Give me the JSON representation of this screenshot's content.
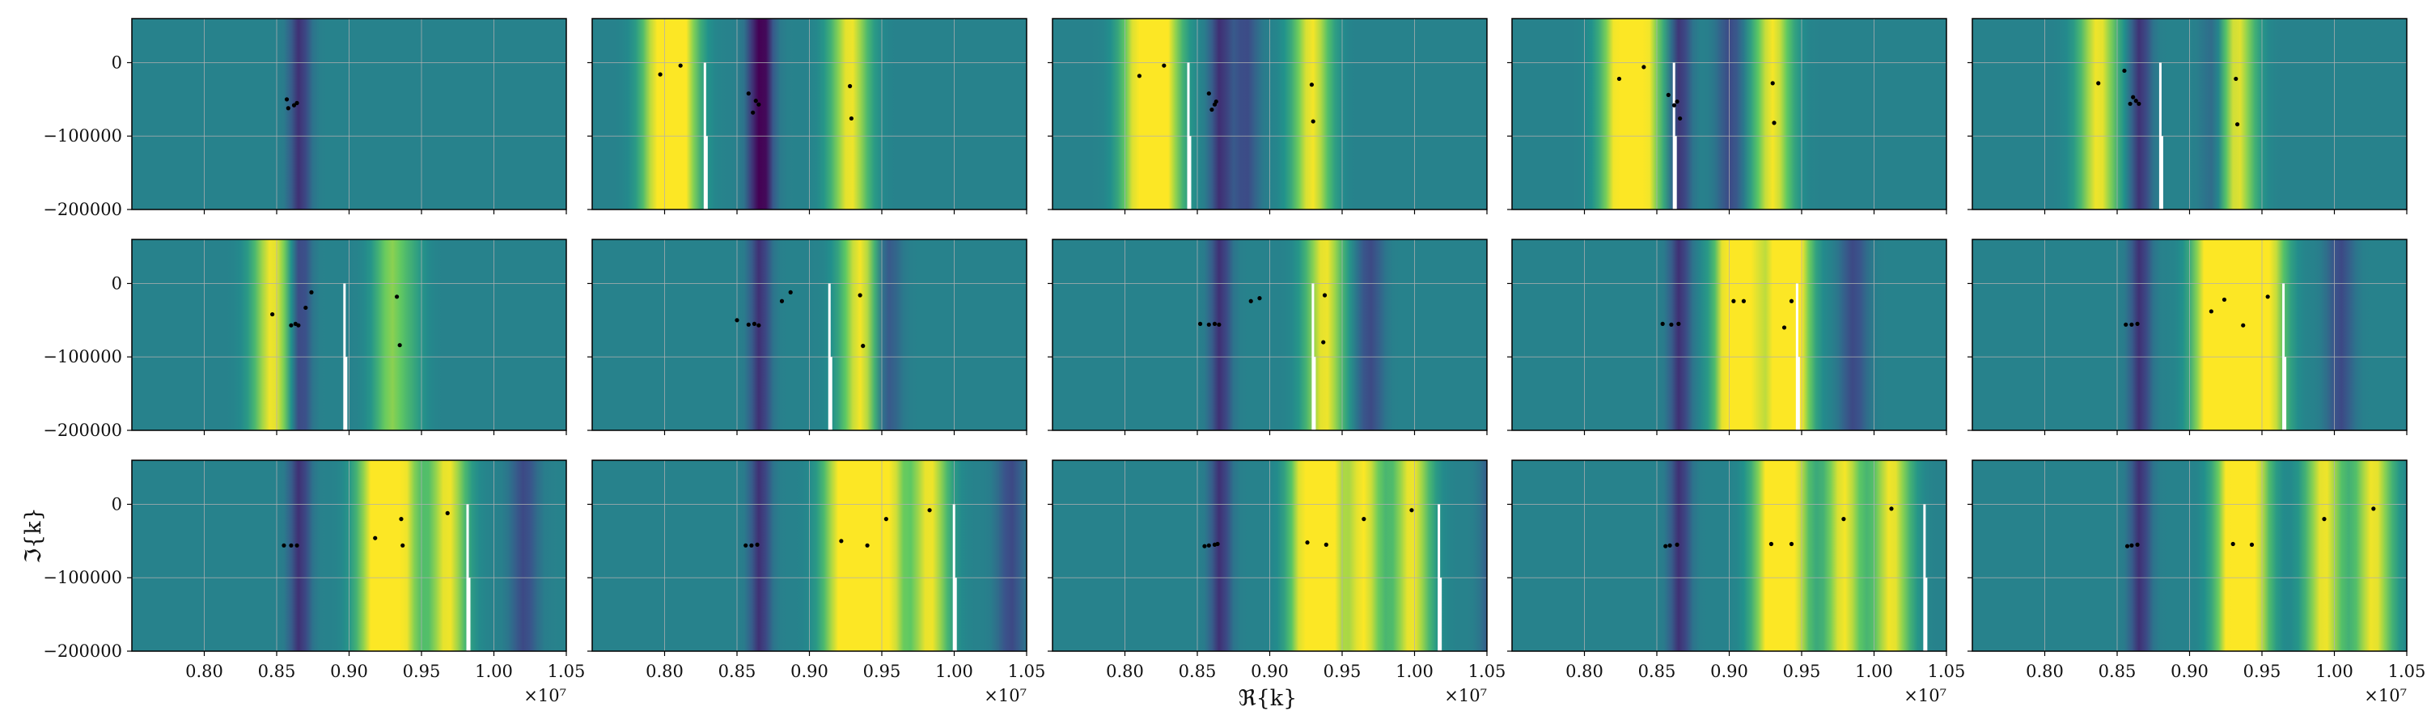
{
  "figure": {
    "xlabel": "ℜ{k}",
    "ylabel": "ℑ{k}",
    "x_offset_label": "×10⁷"
  },
  "chart_data": {
    "type": "heatmap",
    "colormap": "viridis",
    "grid": true,
    "layout": "3 rows × 5 columns, shared axes",
    "xlim": [
      7500000.0,
      10500000.0
    ],
    "ylim": [
      -200000,
      60000
    ],
    "x_ticks": [
      8000000.0,
      8500000.0,
      9000000.0,
      9500000.0,
      10000000.0,
      10500000.0
    ],
    "x_tick_labels": [
      "0.80",
      "0.85",
      "0.90",
      "0.95",
      "1.00",
      "1.05"
    ],
    "y_ticks": [
      0,
      -100000,
      -200000
    ],
    "y_tick_labels": [
      "0",
      "−100000",
      "−200000"
    ],
    "panels": [
      {
        "panel": 1,
        "cut_x": null,
        "roots": [
          [
            8570000.0,
            -50000
          ],
          [
            8580000.0,
            -62000
          ],
          [
            8620000.0,
            -58000
          ],
          [
            8640000.0,
            -55000
          ]
        ]
      },
      {
        "panel": 2,
        "cut_x": 8270000.0,
        "roots": [
          [
            7970000.0,
            -16000
          ],
          [
            8110000.0,
            -4000
          ],
          [
            8580000.0,
            -42000
          ],
          [
            8610000.0,
            -68000
          ],
          [
            8630000.0,
            -52000
          ],
          [
            8650000.0,
            -57000
          ],
          [
            9280000.0,
            -32000
          ],
          [
            9290000.0,
            -76000
          ]
        ]
      },
      {
        "panel": 3,
        "cut_x": 8430000.0,
        "roots": [
          [
            8100000.0,
            -18000
          ],
          [
            8270000.0,
            -4000
          ],
          [
            8580000.0,
            -42000
          ],
          [
            8600000.0,
            -64000
          ],
          [
            8620000.0,
            -57000
          ],
          [
            8630000.0,
            -53000
          ],
          [
            9290000.0,
            -30000
          ],
          [
            9300000.0,
            -80000
          ]
        ]
      },
      {
        "panel": 4,
        "cut_x": 8610000.0,
        "roots": [
          [
            8240000.0,
            -22000
          ],
          [
            8410000.0,
            -6000
          ],
          [
            8580000.0,
            -44000
          ],
          [
            8620000.0,
            -58000
          ],
          [
            8640000.0,
            -53000
          ],
          [
            8660000.0,
            -76000
          ],
          [
            9300000.0,
            -28000
          ],
          [
            9310000.0,
            -82000
          ]
        ]
      },
      {
        "panel": 5,
        "cut_x": 8790000.0,
        "roots": [
          [
            8370000.0,
            -28000
          ],
          [
            8550000.0,
            -11000
          ],
          [
            8590000.0,
            -56000
          ],
          [
            8610000.0,
            -47000
          ],
          [
            8630000.0,
            -52000
          ],
          [
            8650000.0,
            -56000
          ],
          [
            9320000.0,
            -22000
          ],
          [
            9330000.0,
            -84000
          ]
        ]
      },
      {
        "panel": 6,
        "cut_x": 8960000.0,
        "roots": [
          [
            8470000.0,
            -42000
          ],
          [
            8600000.0,
            -57000
          ],
          [
            8630000.0,
            -55000
          ],
          [
            8650000.0,
            -57000
          ],
          [
            8700000.0,
            -33000
          ],
          [
            8740000.0,
            -12000
          ],
          [
            9330000.0,
            -18000
          ],
          [
            9350000.0,
            -84000
          ]
        ]
      },
      {
        "panel": 7,
        "cut_x": 9130000.0,
        "roots": [
          [
            8500000.0,
            -50000
          ],
          [
            8580000.0,
            -56000
          ],
          [
            8620000.0,
            -55000
          ],
          [
            8650000.0,
            -57000
          ],
          [
            8810000.0,
            -24000
          ],
          [
            8870000.0,
            -12000
          ],
          [
            9350000.0,
            -16000
          ],
          [
            9370000.0,
            -85000
          ]
        ]
      },
      {
        "panel": 8,
        "cut_x": 9290000.0,
        "roots": [
          [
            8520000.0,
            -55000
          ],
          [
            8580000.0,
            -56000
          ],
          [
            8620000.0,
            -55000
          ],
          [
            8650000.0,
            -56000
          ],
          [
            8870000.0,
            -24000
          ],
          [
            8930000.0,
            -20000
          ],
          [
            9380000.0,
            -16000
          ],
          [
            9370000.0,
            -80000
          ]
        ]
      },
      {
        "panel": 9,
        "cut_x": 9460000.0,
        "roots": [
          [
            8540000.0,
            -55000
          ],
          [
            8600000.0,
            -56000
          ],
          [
            8650000.0,
            -55000
          ],
          [
            9030000.0,
            -24000
          ],
          [
            9100000.0,
            -24000
          ],
          [
            9380000.0,
            -60000
          ],
          [
            9430000.0,
            -24000
          ]
        ]
      },
      {
        "panel": 10,
        "cut_x": 9640000.0,
        "roots": [
          [
            8560000.0,
            -56000
          ],
          [
            8600000.0,
            -56000
          ],
          [
            8640000.0,
            -55000
          ],
          [
            9150000.0,
            -38000
          ],
          [
            9240000.0,
            -22000
          ],
          [
            9370000.0,
            -57000
          ],
          [
            9540000.0,
            -18000
          ]
        ]
      },
      {
        "panel": 11,
        "cut_x": 9810000.0,
        "roots": [
          [
            8550000.0,
            -56000
          ],
          [
            8600000.0,
            -56000
          ],
          [
            8640000.0,
            -56000
          ],
          [
            9180000.0,
            -46000
          ],
          [
            9360000.0,
            -20000
          ],
          [
            9370000.0,
            -56000
          ],
          [
            9680000.0,
            -12000
          ]
        ]
      },
      {
        "panel": 12,
        "cut_x": 9990000.0,
        "roots": [
          [
            8560000.0,
            -56000
          ],
          [
            8600000.0,
            -56000
          ],
          [
            8640000.0,
            -55000
          ],
          [
            9220000.0,
            -50000
          ],
          [
            9400000.0,
            -56000
          ],
          [
            9530000.0,
            -20000
          ],
          [
            9830000.0,
            -8000
          ]
        ]
      },
      {
        "panel": 13,
        "cut_x": 10160000.0,
        "roots": [
          [
            8550000.0,
            -57000
          ],
          [
            8580000.0,
            -56000
          ],
          [
            8620000.0,
            -55000
          ],
          [
            8640000.0,
            -54000
          ],
          [
            9260000.0,
            -52000
          ],
          [
            9390000.0,
            -55000
          ],
          [
            9650000.0,
            -20000
          ],
          [
            9980000.0,
            -8000
          ]
        ]
      },
      {
        "panel": 14,
        "cut_x": 10340000.0,
        "roots": [
          [
            8560000.0,
            -57000
          ],
          [
            8590000.0,
            -56000
          ],
          [
            8640000.0,
            -55000
          ],
          [
            9290000.0,
            -54000
          ],
          [
            9430000.0,
            -54000
          ],
          [
            9790000.0,
            -20000
          ],
          [
            10120000.0,
            -6000
          ]
        ]
      },
      {
        "panel": 15,
        "cut_x": 10510000.0,
        "roots": [
          [
            8570000.0,
            -57000
          ],
          [
            8600000.0,
            -56000
          ],
          [
            8640000.0,
            -55000
          ],
          [
            9300000.0,
            -54000
          ],
          [
            9430000.0,
            -55000
          ],
          [
            9930000.0,
            -20000
          ],
          [
            10270000.0,
            -6000
          ]
        ]
      }
    ]
  }
}
